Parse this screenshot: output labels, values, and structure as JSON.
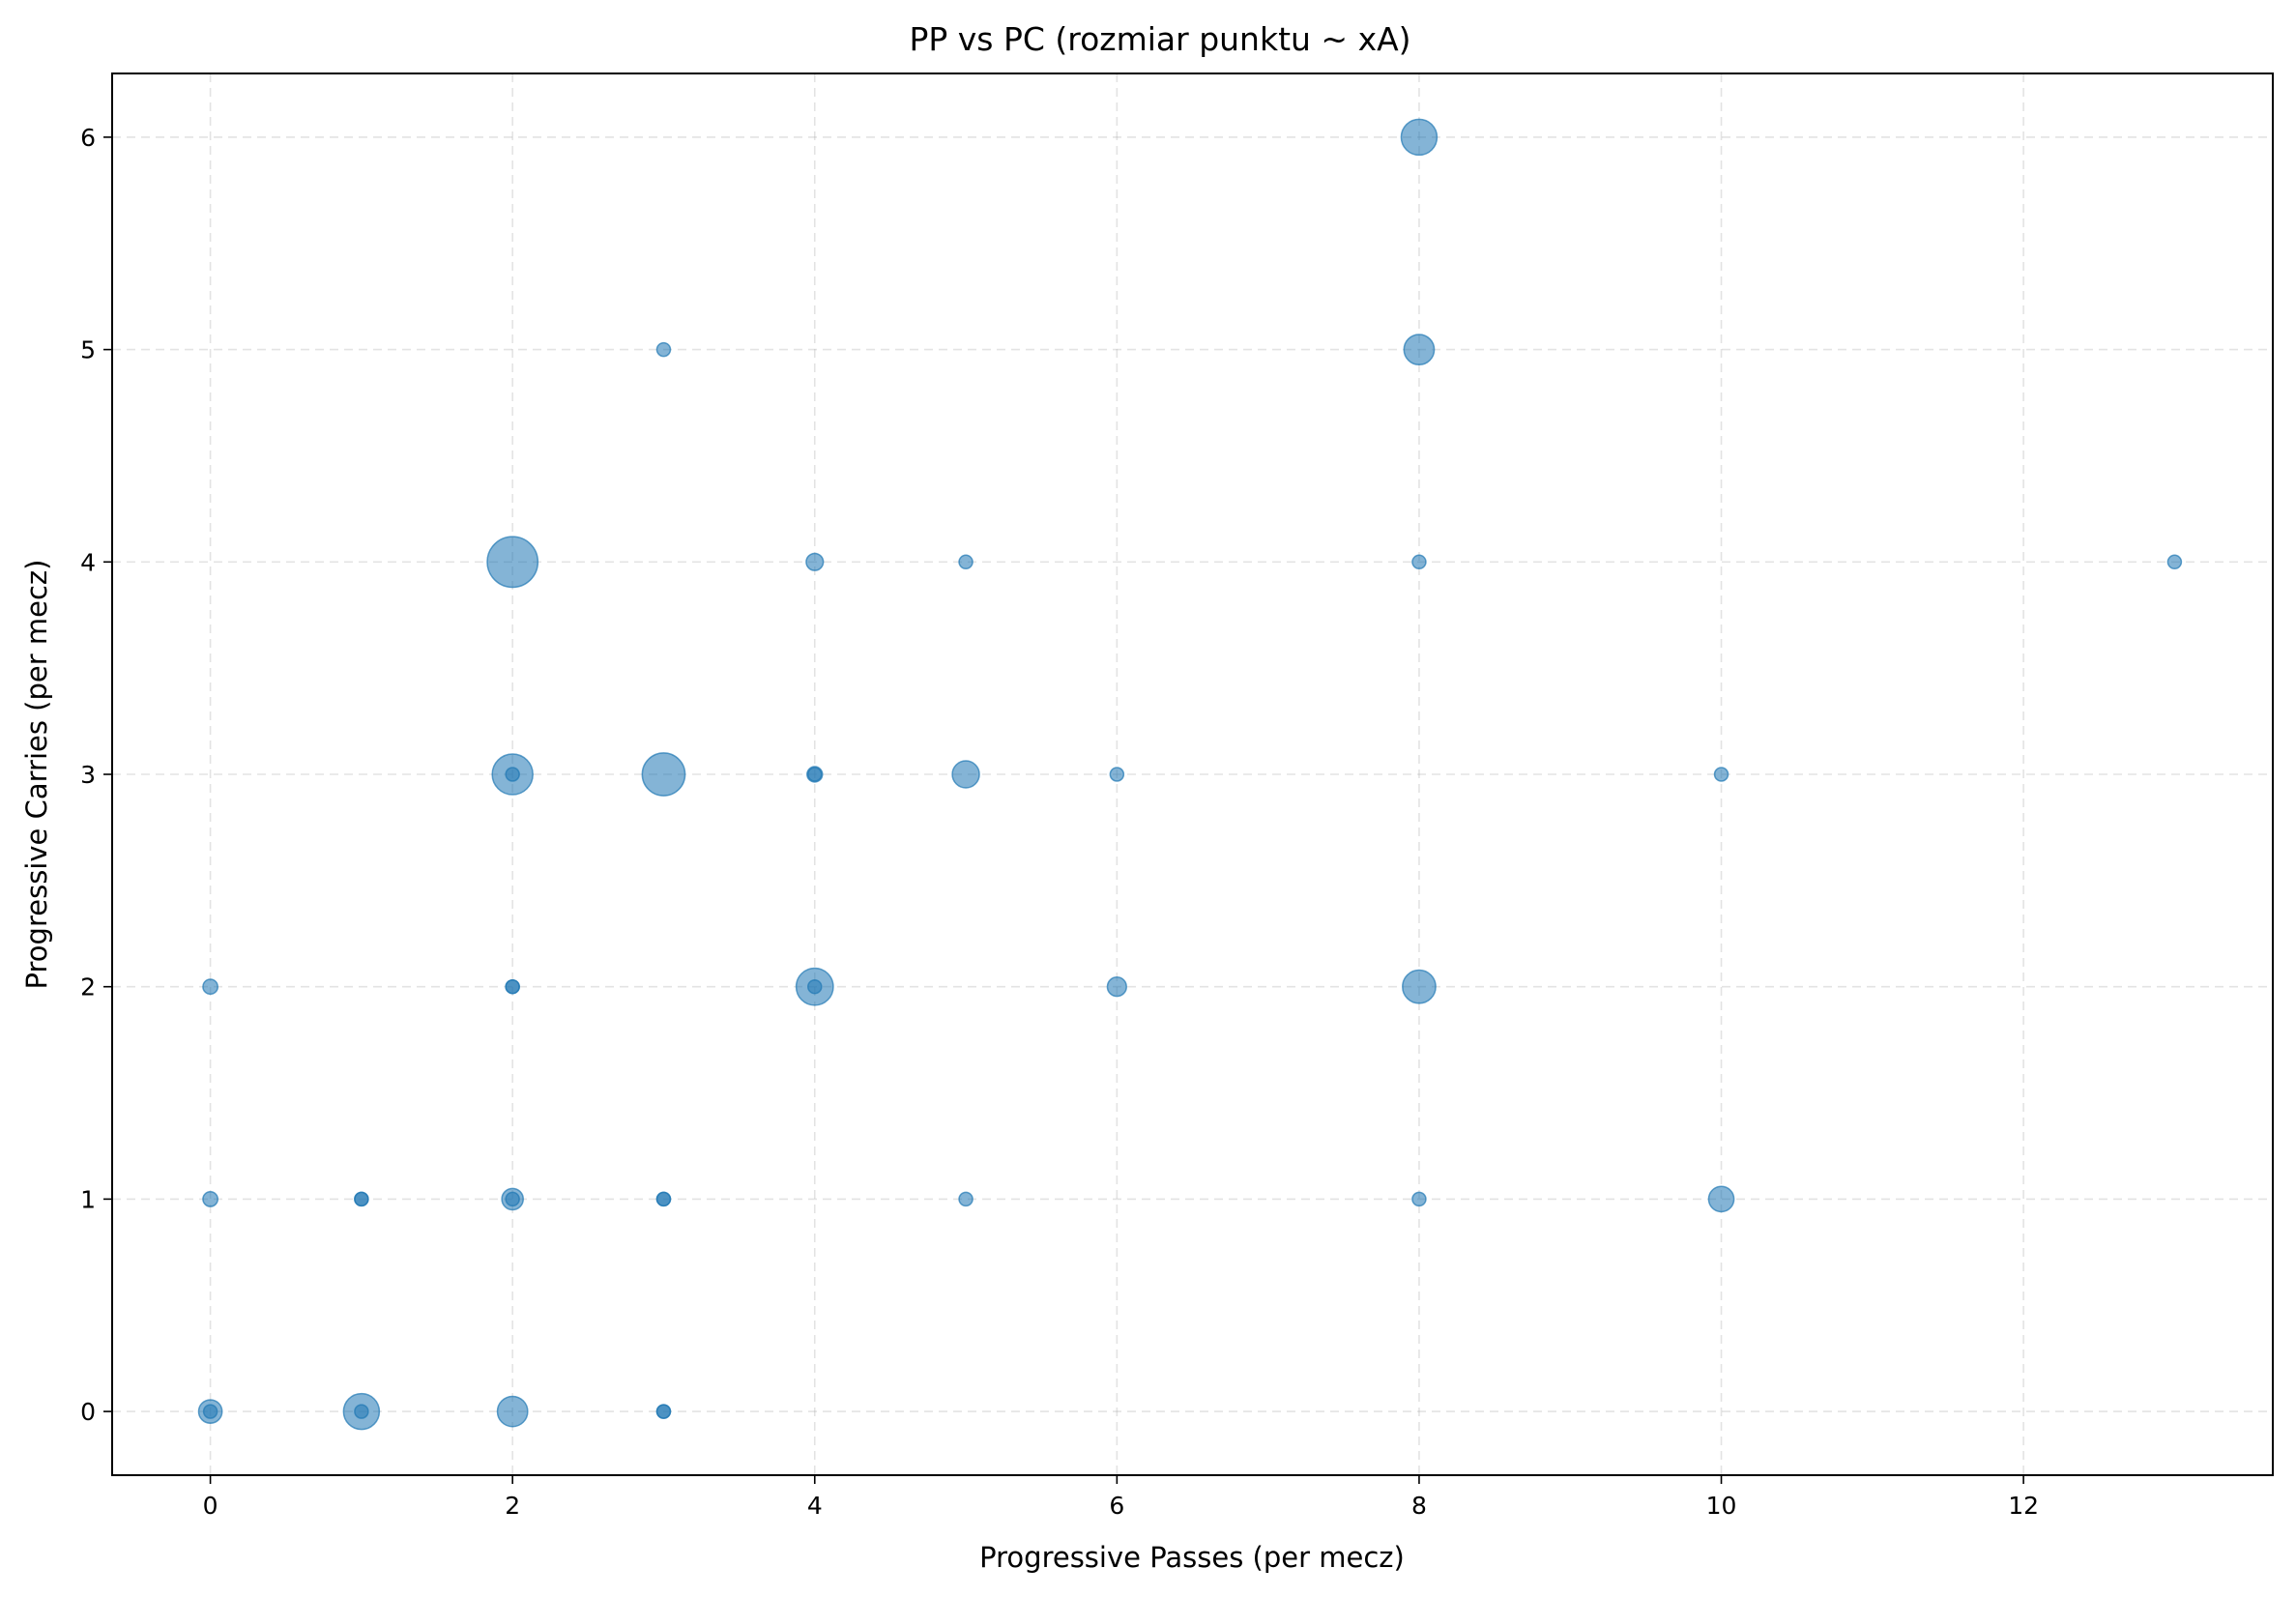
{
  "chart_data": {
    "type": "scatter",
    "title": "PP vs PC (rozmiar punktu ~ xA)",
    "xlabel": "Progressive Passes (per mecz)",
    "ylabel": "Progressive Carries (per mecz)",
    "xlim": [
      -0.65,
      13.65
    ],
    "ylim": [
      -0.3,
      6.3
    ],
    "xticks": [
      0,
      2,
      4,
      6,
      8,
      10,
      12
    ],
    "yticks": [
      0,
      1,
      2,
      3,
      4,
      5,
      6
    ],
    "grid": true,
    "point_color": "#1f77b4",
    "point_alpha": 0.55,
    "size_encoding": "xA (relative marker area, 1 = smallest)",
    "points": [
      {
        "x": 8,
        "y": 6,
        "s": 7
      },
      {
        "x": 3,
        "y": 5,
        "s": 1
      },
      {
        "x": 8,
        "y": 5,
        "s": 5
      },
      {
        "x": 2,
        "y": 4,
        "s": 14
      },
      {
        "x": 4,
        "y": 4,
        "s": 1.6
      },
      {
        "x": 5,
        "y": 4,
        "s": 1
      },
      {
        "x": 8,
        "y": 4,
        "s": 1
      },
      {
        "x": 13,
        "y": 4,
        "s": 1
      },
      {
        "x": 2,
        "y": 3,
        "s": 9
      },
      {
        "x": 2,
        "y": 3,
        "s": 1
      },
      {
        "x": 3,
        "y": 3,
        "s": 10
      },
      {
        "x": 4,
        "y": 3,
        "s": 1.3
      },
      {
        "x": 4,
        "y": 3,
        "s": 1
      },
      {
        "x": 5,
        "y": 3,
        "s": 4
      },
      {
        "x": 6,
        "y": 3,
        "s": 1
      },
      {
        "x": 10,
        "y": 3,
        "s": 1
      },
      {
        "x": 0,
        "y": 2,
        "s": 1.2
      },
      {
        "x": 2,
        "y": 2,
        "s": 1
      },
      {
        "x": 2,
        "y": 2,
        "s": 1
      },
      {
        "x": 4,
        "y": 2,
        "s": 7.5
      },
      {
        "x": 4,
        "y": 2,
        "s": 1
      },
      {
        "x": 6,
        "y": 2,
        "s": 2
      },
      {
        "x": 8,
        "y": 2,
        "s": 6
      },
      {
        "x": 0,
        "y": 1,
        "s": 1.2
      },
      {
        "x": 1,
        "y": 1,
        "s": 1
      },
      {
        "x": 1,
        "y": 1,
        "s": 1
      },
      {
        "x": 2,
        "y": 1,
        "s": 2.5
      },
      {
        "x": 2,
        "y": 1,
        "s": 1
      },
      {
        "x": 3,
        "y": 1,
        "s": 1
      },
      {
        "x": 3,
        "y": 1,
        "s": 1
      },
      {
        "x": 5,
        "y": 1,
        "s": 1
      },
      {
        "x": 8,
        "y": 1,
        "s": 1
      },
      {
        "x": 10,
        "y": 1,
        "s": 3.5
      },
      {
        "x": 0,
        "y": 0,
        "s": 3
      },
      {
        "x": 0,
        "y": 0,
        "s": 1
      },
      {
        "x": 1,
        "y": 0,
        "s": 7
      },
      {
        "x": 1,
        "y": 0,
        "s": 1
      },
      {
        "x": 2,
        "y": 0,
        "s": 5
      },
      {
        "x": 3,
        "y": 0,
        "s": 1
      },
      {
        "x": 3,
        "y": 0,
        "s": 1
      }
    ]
  }
}
